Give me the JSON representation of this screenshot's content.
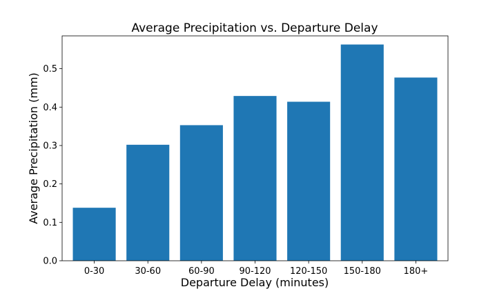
{
  "chart_data": {
    "type": "bar",
    "title": "Average Precipitation vs. Departure Delay",
    "xlabel": "Departure Delay (minutes)",
    "ylabel": "Average Precipitation (mm)",
    "categories": [
      "0-30",
      "30-60",
      "60-90",
      "90-120",
      "120-150",
      "150-180",
      "180+"
    ],
    "values": [
      0.138,
      0.302,
      0.353,
      0.429,
      0.414,
      0.563,
      0.477
    ],
    "ylim": [
      0,
      0.5855
    ],
    "yticks": [
      0.0,
      0.1,
      0.2,
      0.3,
      0.4,
      0.5
    ],
    "ytick_labels": [
      "0.0",
      "0.1",
      "0.2",
      "0.3",
      "0.4",
      "0.5"
    ],
    "bar_color": "#1f77b4",
    "grid": false,
    "legend": "none"
  }
}
